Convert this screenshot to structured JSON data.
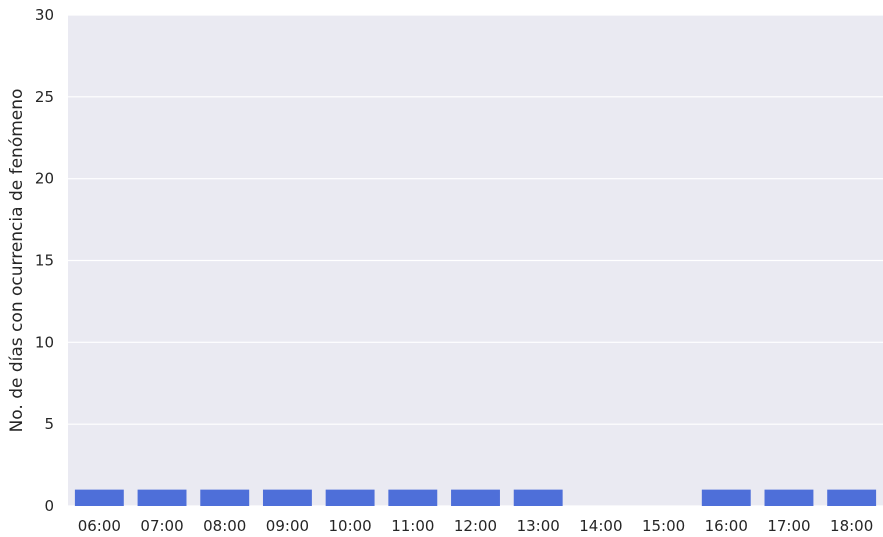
{
  "chart_data": {
    "type": "bar",
    "categories": [
      "06:00",
      "07:00",
      "08:00",
      "09:00",
      "10:00",
      "11:00",
      "12:00",
      "13:00",
      "14:00",
      "15:00",
      "16:00",
      "17:00",
      "18:00"
    ],
    "values": [
      1,
      1,
      1,
      1,
      1,
      1,
      1,
      1,
      0,
      0,
      1,
      1,
      1
    ],
    "title": "",
    "xlabel": "",
    "ylabel": "No. de días con ocurrencia de fenómeno",
    "ylim": [
      0,
      30
    ],
    "yticks": [
      0,
      5,
      10,
      15,
      20,
      25,
      30
    ],
    "grid": true,
    "legend": "none",
    "colors": {
      "bar": "#4e6fd9",
      "plot_background": "#eaeaf2",
      "grid": "#ffffff"
    }
  }
}
